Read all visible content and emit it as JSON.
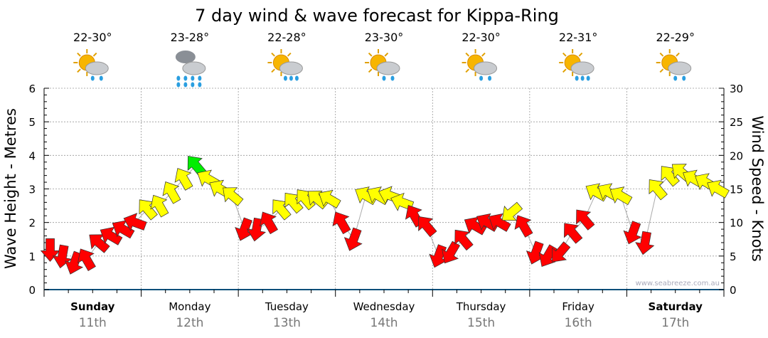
{
  "chart_data": {
    "type": "scatter",
    "title": "7 day wind & wave forecast for Kippa-Ring",
    "ylabel": "Wave Height - Metres",
    "y2label": "Wind Speed - Knots",
    "ylim": [
      0,
      6
    ],
    "y2lim": [
      0,
      30
    ],
    "yticks": [
      "0",
      "1",
      "2",
      "3",
      "4",
      "5",
      "6"
    ],
    "y2ticks": [
      "0",
      "5",
      "10",
      "15",
      "20",
      "25",
      "30"
    ],
    "watermark": "www.seabreeze.com.au",
    "days": [
      {
        "name": "Sunday",
        "date": "11th",
        "temp": "22-30°",
        "icon": "sun-cloud-showers",
        "bold": true
      },
      {
        "name": "Monday",
        "date": "12th",
        "temp": "23-28°",
        "icon": "rain-cloud",
        "bold": false
      },
      {
        "name": "Tuesday",
        "date": "13th",
        "temp": "22-28°",
        "icon": "sun-cloud-rain",
        "bold": false
      },
      {
        "name": "Wednesday",
        "date": "14th",
        "temp": "23-30°",
        "icon": "sun-cloud-showers",
        "bold": false
      },
      {
        "name": "Thursday",
        "date": "15th",
        "temp": "22-30°",
        "icon": "sun-cloud-showers",
        "bold": false
      },
      {
        "name": "Friday",
        "date": "16th",
        "temp": "22-31°",
        "icon": "sun-cloud-rain",
        "bold": false
      },
      {
        "name": "Saturday",
        "date": "17th",
        "temp": "22-29°",
        "icon": "sun-cloud-showers",
        "bold": true
      }
    ],
    "interval_hours": 3,
    "wave_height": [
      1.2,
      1.0,
      0.8,
      0.9,
      1.4,
      1.6,
      1.8,
      2.0,
      2.4,
      2.5,
      2.9,
      3.3,
      3.7,
      3.3,
      3.0,
      2.8,
      1.8,
      1.8,
      2.0,
      2.4,
      2.6,
      2.7,
      2.7,
      2.7,
      2.0,
      1.5,
      2.8,
      2.8,
      2.8,
      2.6,
      2.2,
      1.9,
      1.0,
      1.1,
      1.5,
      1.9,
      2.0,
      2.0,
      2.3,
      1.9,
      1.1,
      1.0,
      1.1,
      1.7,
      2.1,
      2.9,
      2.9,
      2.8,
      1.7,
      1.4,
      3.0,
      3.4,
      3.5,
      3.3,
      3.2,
      3.0
    ],
    "wind_speed": [
      7,
      6,
      6,
      8,
      8,
      9,
      9,
      9,
      12,
      13,
      15,
      17,
      21,
      17,
      15,
      14,
      9,
      9,
      9,
      12,
      13,
      13,
      13,
      12,
      9,
      8,
      12,
      12,
      12,
      11,
      9,
      8,
      7,
      8,
      9,
      9,
      9,
      9,
      12,
      9,
      6,
      6,
      7,
      9,
      9,
      13,
      13,
      13,
      8,
      7,
      14,
      15,
      16,
      15,
      14,
      13
    ],
    "wind_direction_deg": [
      180,
      190,
      200,
      330,
      310,
      300,
      300,
      290,
      320,
      330,
      330,
      330,
      320,
      300,
      300,
      310,
      200,
      190,
      330,
      320,
      320,
      320,
      310,
      300,
      330,
      200,
      300,
      300,
      290,
      290,
      330,
      320,
      200,
      210,
      320,
      300,
      300,
      300,
      230,
      330,
      200,
      210,
      220,
      320,
      320,
      300,
      300,
      300,
      200,
      190,
      320,
      320,
      310,
      300,
      300,
      300
    ],
    "colors": {
      "low": "#ff0000",
      "mid": "#ffff00",
      "high": "#00ee00",
      "axis": "#0b4f7a",
      "grid": "#999999"
    }
  }
}
